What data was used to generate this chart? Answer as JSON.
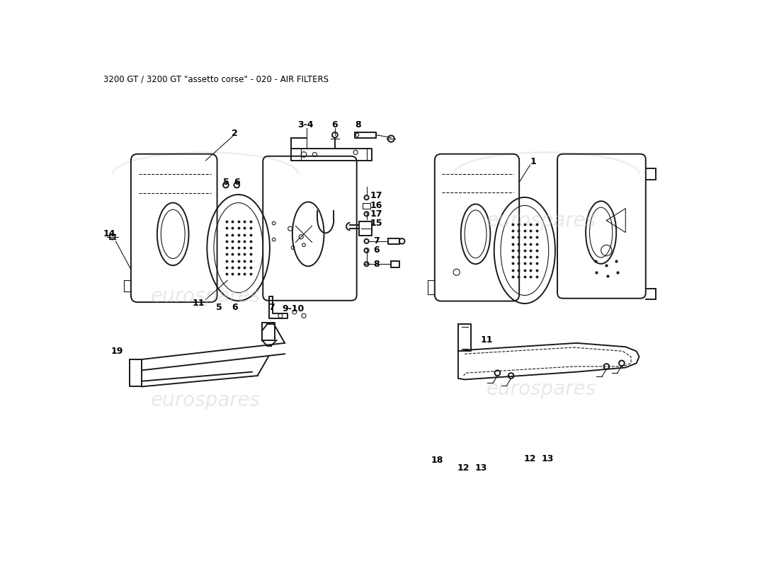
{
  "title": "3200 GT / 3200 GT \"assetto corse\" - 020 - AIR FILTERS",
  "title_fontsize": 8.5,
  "title_color": "#000000",
  "bg_color": "#ffffff",
  "line_color": "#1a1a1a",
  "watermark_text": "eurospares",
  "label_fontsize": 9,
  "wm_color": "#cccccc",
  "wm_alpha": 0.45,
  "wm_fontsize": 20
}
